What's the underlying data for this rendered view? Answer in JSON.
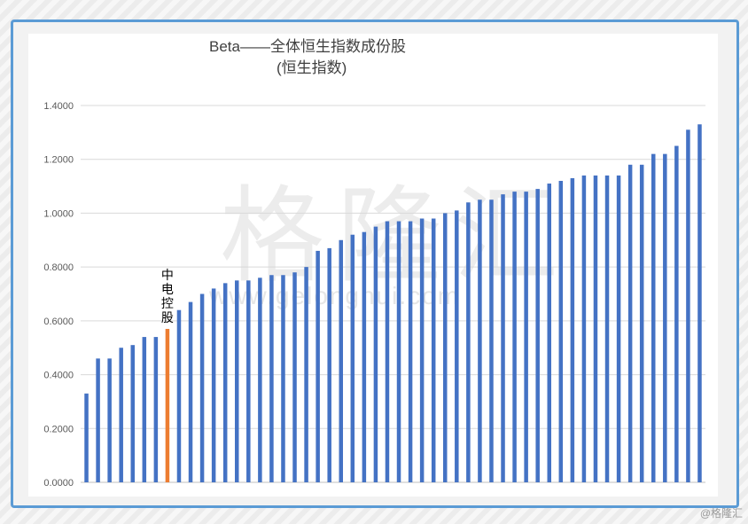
{
  "watermark": "格隆汇",
  "watermark_url": "www.gelonghui.com",
  "credit": "@格隆汇",
  "chart_data": {
    "type": "bar",
    "title": "Beta——全体恒生指数成份股",
    "subtitle": "(恒生指数)",
    "xlabel": "",
    "ylabel": "",
    "ylim": [
      0,
      1.4
    ],
    "yticks": [
      "0.0000",
      "0.2000",
      "0.4000",
      "0.6000",
      "0.8000",
      "1.0000",
      "1.2000",
      "1.4000"
    ],
    "grid": true,
    "colors": {
      "default": "#4472c4",
      "highlight": "#ed7d31"
    },
    "highlight_index": 7,
    "annotation": "中电控股",
    "values": [
      0.33,
      0.46,
      0.46,
      0.5,
      0.51,
      0.54,
      0.54,
      0.57,
      0.64,
      0.67,
      0.7,
      0.72,
      0.74,
      0.75,
      0.75,
      0.76,
      0.77,
      0.77,
      0.78,
      0.8,
      0.86,
      0.87,
      0.9,
      0.92,
      0.93,
      0.95,
      0.97,
      0.97,
      0.97,
      0.98,
      0.98,
      1.0,
      1.01,
      1.04,
      1.05,
      1.05,
      1.07,
      1.08,
      1.08,
      1.09,
      1.11,
      1.12,
      1.13,
      1.14,
      1.14,
      1.14,
      1.14,
      1.18,
      1.18,
      1.22,
      1.22,
      1.25,
      1.31,
      1.33
    ]
  }
}
